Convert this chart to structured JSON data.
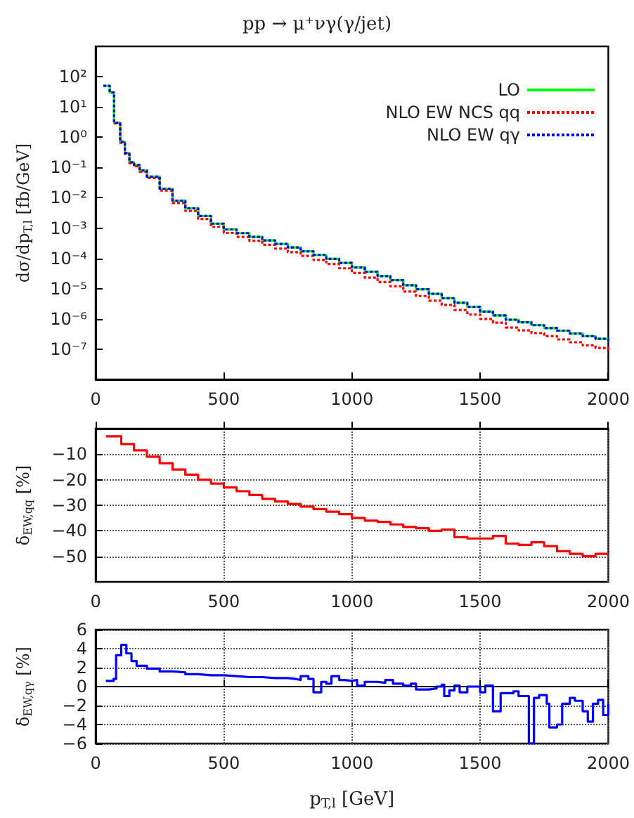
{
  "chart_data": [
    {
      "type": "step",
      "title": "pp → μ⁺νγ(γ/jet)",
      "ylabel": "dσ/dp$_{T,l}$ [fb/GeV]",
      "log": "y",
      "legend": "top right",
      "xlim": [
        0,
        2000
      ],
      "xticks": [
        0,
        500,
        1000,
        1500,
        2000
      ],
      "ylim": [
        1e-08,
        1000
      ],
      "yticks": [
        {
          "value": 1e-07,
          "label": "10⁻⁷"
        },
        {
          "value": 1e-06,
          "label": "10⁻⁶"
        },
        {
          "value": 1e-05,
          "label": "10⁻⁵"
        },
        {
          "value": 0.0001,
          "label": "10⁻⁴"
        },
        {
          "value": 0.001,
          "label": "10⁻³"
        },
        {
          "value": 0.01,
          "label": "10⁻²"
        },
        {
          "value": 0.1,
          "label": "10⁻¹"
        },
        {
          "value": 1,
          "label": "10⁰"
        },
        {
          "value": 10,
          "label": "10¹"
        },
        {
          "value": 100,
          "label": "10²"
        }
      ],
      "x": [
        30,
        55,
        72,
        96,
        114,
        132,
        150,
        172,
        200,
        250,
        300,
        350,
        400,
        450,
        500,
        550,
        600,
        650,
        700,
        750,
        800,
        850,
        900,
        950,
        1000,
        1050,
        1100,
        1150,
        1200,
        1250,
        1300,
        1350,
        1400,
        1450,
        1500,
        1550,
        1600,
        1650,
        1700,
        1750,
        1800,
        1850,
        1900,
        1950,
        2000
      ],
      "series": [
        {
          "name": "LO",
          "color": "#00ff00",
          "line_style": "solid",
          "values": [
            50,
            30,
            3,
            0.7,
            0.3,
            0.15,
            0.12,
            0.08,
            0.05,
            0.02,
            0.008,
            0.0045,
            0.0025,
            0.0014,
            0.0009,
            0.00068,
            0.00051,
            0.00039,
            0.0003,
            0.00023,
            0.00017,
            0.00013,
            9.6e-05,
            7.1e-05,
            5e-05,
            3.6e-05,
            2.6e-05,
            1.9e-05,
            1.3e-05,
            9.5e-06,
            6.7e-06,
            4.8e-06,
            3.4e-06,
            2.5e-06,
            1.75e-06,
            1.3e-06,
            9.4e-07,
            7.7e-07,
            6.2e-07,
            5e-07,
            4.1e-07,
            3.3e-07,
            2.7e-07,
            2.2e-07,
            1.8e-07
          ]
        },
        {
          "name": "NLO EW NCS qq",
          "color": "#ff0000",
          "line_style": "dotted",
          "values": [
            null,
            null,
            2.85,
            0.66,
            0.28,
            0.138,
            0.109,
            0.072,
            0.0445,
            0.0173,
            0.0067,
            0.0037,
            0.002,
            0.0011,
            0.00069,
            0.00051,
            0.00038,
            0.00028,
            0.00021,
            0.00016,
            0.00012,
            8.9e-05,
            6.5e-05,
            4.7e-05,
            3.3e-05,
            2.3e-05,
            1.65e-05,
            1.19e-05,
            8e-06,
            5.7e-06,
            4e-06,
            2.9e-06,
            1.96e-06,
            1.4e-06,
            1e-06,
            7.5e-07,
            5.2e-07,
            4.2e-07,
            3.4e-07,
            2.7e-07,
            2.1e-07,
            1.7e-07,
            1.35e-07,
            1.1e-07,
            9.2e-08
          ]
        },
        {
          "name": "NLO EW qγ",
          "color": "#0000ff",
          "line_style": "dotted",
          "values": [
            50,
            30,
            3,
            0.7,
            0.3,
            0.15,
            0.12,
            0.08,
            0.05,
            0.02,
            0.008,
            0.0045,
            0.0025,
            0.0014,
            0.0009,
            0.00068,
            0.00051,
            0.00039,
            0.0003,
            0.00023,
            0.00017,
            0.00013,
            9.6e-05,
            7.1e-05,
            5e-05,
            3.6e-05,
            2.6e-05,
            1.9e-05,
            1.3e-05,
            9.5e-06,
            6.7e-06,
            4.8e-06,
            3.4e-06,
            2.5e-06,
            1.75e-06,
            1.3e-06,
            9.4e-07,
            7.7e-07,
            6.2e-07,
            5e-07,
            4.1e-07,
            3.3e-07,
            2.7e-07,
            2.2e-07,
            1.8e-07
          ]
        }
      ]
    },
    {
      "type": "step",
      "ylabel": "δ$_{EW,qq}$ [%]",
      "grid": true,
      "xlim": [
        0,
        2000
      ],
      "xticks": [
        0,
        500,
        1000,
        1500,
        2000
      ],
      "ylim": [
        -60,
        0
      ],
      "yticks": [
        -50,
        -40,
        -30,
        -20,
        -10
      ],
      "x": [
        40,
        100,
        150,
        200,
        250,
        300,
        350,
        400,
        450,
        500,
        550,
        600,
        650,
        700,
        750,
        800,
        850,
        900,
        950,
        1000,
        1050,
        1100,
        1150,
        1200,
        1250,
        1300,
        1350,
        1400,
        1450,
        1500,
        1550,
        1600,
        1650,
        1700,
        1750,
        1800,
        1850,
        1900,
        1950,
        2000
      ],
      "series": [
        {
          "color": "#ff0000",
          "values": [
            -3,
            -6,
            -8.5,
            -11,
            -13.5,
            -16,
            -18,
            -20,
            -21.5,
            -23,
            -24.5,
            -26,
            -27.5,
            -28.5,
            -29.5,
            -30.5,
            -31.5,
            -32.5,
            -33.5,
            -35,
            -36,
            -36.5,
            -37.5,
            -38.5,
            -39,
            -40,
            -39.5,
            -42.5,
            -43,
            -43,
            -42,
            -45,
            -45.5,
            -44.5,
            -46,
            -48,
            -49,
            -50,
            -49,
            -49
          ]
        }
      ]
    },
    {
      "type": "step",
      "xlabel": "p$_{T,l}$ [GeV]",
      "ylabel": "δ$_{EW,qγ}$ [%]",
      "grid": true,
      "xlim": [
        0,
        2000
      ],
      "xticks": [
        0,
        500,
        1000,
        1500,
        2000
      ],
      "ylim": [
        -6,
        6
      ],
      "yticks": [
        -6,
        -4,
        -2,
        0,
        2,
        4,
        6
      ],
      "x": [
        40,
        70,
        80,
        100,
        120,
        140,
        160,
        200,
        250,
        300,
        350,
        400,
        450,
        500,
        550,
        600,
        650,
        700,
        750,
        780,
        800,
        830,
        850,
        880,
        900,
        920,
        950,
        970,
        1000,
        1020,
        1050,
        1100,
        1130,
        1160,
        1200,
        1230,
        1250,
        1300,
        1330,
        1350,
        1360,
        1380,
        1400,
        1420,
        1450,
        1500,
        1520,
        1550,
        1580,
        1630,
        1650,
        1690,
        1710,
        1730,
        1760,
        1770,
        1800,
        1820,
        1850,
        1870,
        1900,
        1920,
        1940,
        1960,
        1980,
        2000
      ],
      "series": [
        {
          "color": "#0000ff",
          "values": [
            0.6,
            0.8,
            3.3,
            4.4,
            3.5,
            2.7,
            2.2,
            1.9,
            1.6,
            1.5,
            1.3,
            1.2,
            1.2,
            1.1,
            1,
            1,
            0.9,
            0.9,
            0.8,
            0.7,
            1.1,
            0.8,
            -0.6,
            0.5,
            0.3,
            1.1,
            0.7,
            0.6,
            0.7,
            0.1,
            0.5,
            0.4,
            0.7,
            0.3,
            0.1,
            0.3,
            -0.3,
            -0.2,
            0,
            0.2,
            -1,
            -0.4,
            0.1,
            -0.6,
            0,
            -0.6,
            0.1,
            -2.6,
            -0.7,
            -0.5,
            -1,
            -6,
            -1.2,
            -0.9,
            -1.8,
            -4.3,
            -4,
            -1.8,
            -1.2,
            -1.5,
            -2.6,
            -3.7,
            -1.8,
            -1.4,
            -3,
            -1.8
          ]
        }
      ]
    }
  ]
}
